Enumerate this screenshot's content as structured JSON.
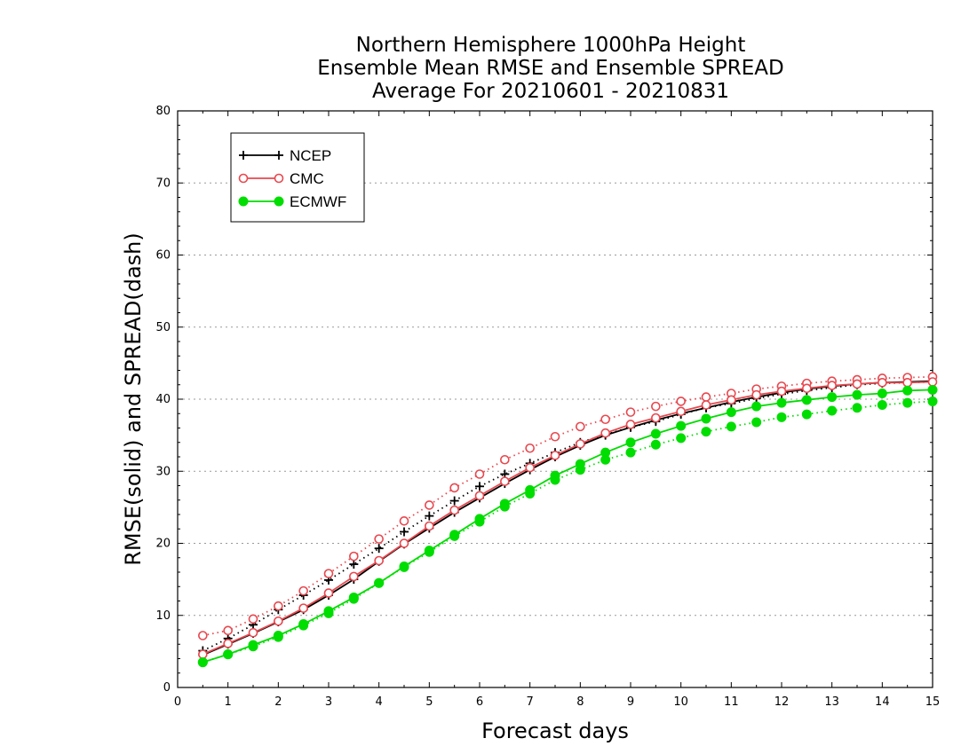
{
  "chart_data": {
    "type": "line",
    "title": [
      "Northern Hemisphere 1000hPa Height",
      "Ensemble Mean RMSE and Ensemble SPREAD",
      "Average For 20210601 - 20210831"
    ],
    "xlabel": "Forecast days",
    "ylabel": "RMSE(solid) and SPREAD(dash)",
    "xlim": [
      0,
      15
    ],
    "ylim": [
      0,
      80
    ],
    "xticks": [
      "0",
      "1",
      "2",
      "3",
      "4",
      "5",
      "6",
      "7",
      "8",
      "9",
      "10",
      "11",
      "12",
      "13",
      "14",
      "15"
    ],
    "yticks": [
      "0",
      "10",
      "20",
      "30",
      "40",
      "50",
      "60",
      "70",
      "80"
    ],
    "grid": true,
    "legend_position": "top-left",
    "x": [
      0.5,
      1,
      1.5,
      2,
      2.5,
      3,
      3.5,
      4,
      4.5,
      5,
      5.5,
      6,
      6.5,
      7,
      7.5,
      8,
      8.5,
      9,
      9.5,
      10,
      10.5,
      11,
      11.5,
      12,
      12.5,
      13,
      13.5,
      14,
      14.5,
      15
    ],
    "series": [
      {
        "name": "NCEP",
        "color": "#000000",
        "marker": "plus",
        "rmse": [
          4.5,
          6.0,
          7.5,
          9.1,
          10.8,
          12.8,
          15.0,
          17.5,
          19.9,
          22.1,
          24.3,
          26.3,
          28.3,
          30.2,
          32.0,
          33.6,
          35.0,
          36.1,
          37.1,
          38.0,
          38.8,
          39.6,
          40.3,
          40.9,
          41.4,
          41.8,
          42.1,
          42.3,
          42.4,
          42.5
        ],
        "spread": [
          5.1,
          6.8,
          8.7,
          10.8,
          12.8,
          14.9,
          17.1,
          19.3,
          21.6,
          23.8,
          25.9,
          27.9,
          29.6,
          31.1,
          32.6,
          34.0,
          35.1,
          36.1,
          36.9,
          37.9,
          38.8,
          39.4,
          40.1,
          40.7,
          41.2,
          41.6,
          42.0,
          42.2,
          42.3,
          42.4
        ]
      },
      {
        "name": "CMC",
        "color": "#e8484f",
        "marker": "circle",
        "rmse": [
          4.6,
          6.1,
          7.6,
          9.2,
          11.0,
          13.1,
          15.4,
          17.6,
          20.0,
          22.4,
          24.6,
          26.6,
          28.6,
          30.5,
          32.2,
          33.8,
          35.3,
          36.5,
          37.4,
          38.3,
          39.2,
          39.9,
          40.6,
          41.1,
          41.5,
          41.9,
          42.1,
          42.3,
          42.3,
          42.4
        ],
        "spread": [
          7.2,
          7.9,
          9.5,
          11.3,
          13.4,
          15.8,
          18.2,
          20.6,
          23.1,
          25.3,
          27.7,
          29.6,
          31.6,
          33.2,
          34.8,
          36.2,
          37.2,
          38.2,
          39.0,
          39.7,
          40.3,
          40.8,
          41.4,
          41.8,
          42.2,
          42.5,
          42.7,
          42.9,
          43.0,
          43.1
        ]
      },
      {
        "name": "ECMWF",
        "color": "#00dd00",
        "marker": "dot",
        "rmse": [
          3.5,
          4.6,
          5.9,
          7.2,
          8.8,
          10.6,
          12.5,
          14.5,
          16.8,
          19.0,
          21.2,
          23.4,
          25.5,
          27.4,
          29.4,
          31.0,
          32.6,
          34.0,
          35.2,
          36.3,
          37.3,
          38.2,
          39.0,
          39.5,
          39.9,
          40.3,
          40.6,
          40.8,
          41.2,
          41.3
        ],
        "spread": [
          3.5,
          4.6,
          5.7,
          7.0,
          8.6,
          10.3,
          12.3,
          14.5,
          16.7,
          18.8,
          21.0,
          23.0,
          25.1,
          26.9,
          28.8,
          30.2,
          31.6,
          32.6,
          33.7,
          34.6,
          35.5,
          36.2,
          36.8,
          37.5,
          37.9,
          38.4,
          38.8,
          39.2,
          39.5,
          39.7
        ]
      }
    ]
  }
}
